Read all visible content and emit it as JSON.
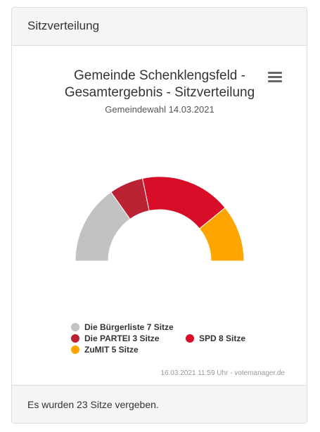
{
  "header": {
    "title": "Sitzverteilung"
  },
  "chart_data": {
    "type": "pie",
    "variant": "semi-circle donut",
    "title": "Gemeinde Schenklengsfeld - Gesamtergebnis - Sitzverteilung",
    "subtitle": "Gemeindewahl 14.03.2021",
    "categories": [
      "Die Bürgerliste",
      "Die PARTEI",
      "SPD",
      "ZuMIT"
    ],
    "values": [
      7,
      3,
      8,
      5
    ],
    "unit": "Sitze",
    "colors": [
      "#c2c2c2",
      "#bb2234",
      "#d80d27",
      "#ffa500"
    ],
    "legend_labels": [
      "Die Bürgerliste 7 Sitze",
      "Die PARTEI 3 Sitze",
      "SPD 8 Sitze",
      "ZuMIT 5 Sitze"
    ],
    "legend_placement": "bottom"
  },
  "credit": "16.03.2021 11:59 Uhr - votemanager.de",
  "menu_icon": "hamburger-menu-icon",
  "footer": {
    "text": "Es wurden 23 Sitze vergeben."
  }
}
